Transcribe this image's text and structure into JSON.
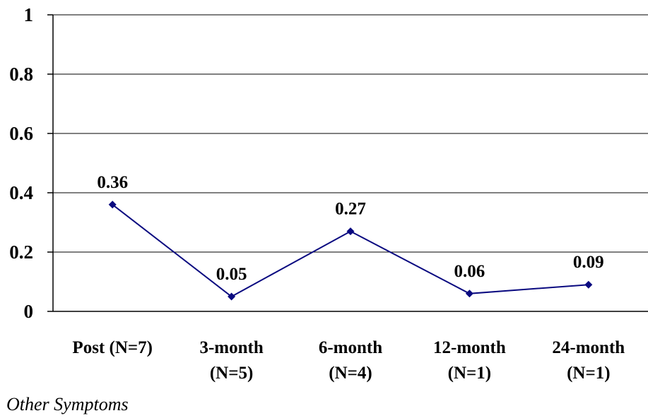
{
  "chart_data": {
    "type": "line",
    "categories": [
      [
        "Post (N=7)"
      ],
      [
        "3-month",
        "(N=5)"
      ],
      [
        "6-month",
        "(N=4)"
      ],
      [
        "12-month",
        "(N=1)"
      ],
      [
        "24-month",
        "(N=1)"
      ]
    ],
    "values": [
      0.36,
      0.05,
      0.27,
      0.06,
      0.09
    ],
    "data_labels": [
      "0.36",
      "0.05",
      "0.27",
      "0.06",
      "0.09"
    ],
    "ylim": [
      0,
      1
    ],
    "yticks": [
      0,
      0.2,
      0.4,
      0.6,
      0.8,
      1
    ],
    "ytick_labels": [
      "0",
      "0.2",
      "0.4",
      "0.6",
      "0.8",
      "1"
    ],
    "grid": true,
    "line_color": "#0a0a80",
    "marker_color": "#0a0a80"
  },
  "caption": "Other Symptoms"
}
